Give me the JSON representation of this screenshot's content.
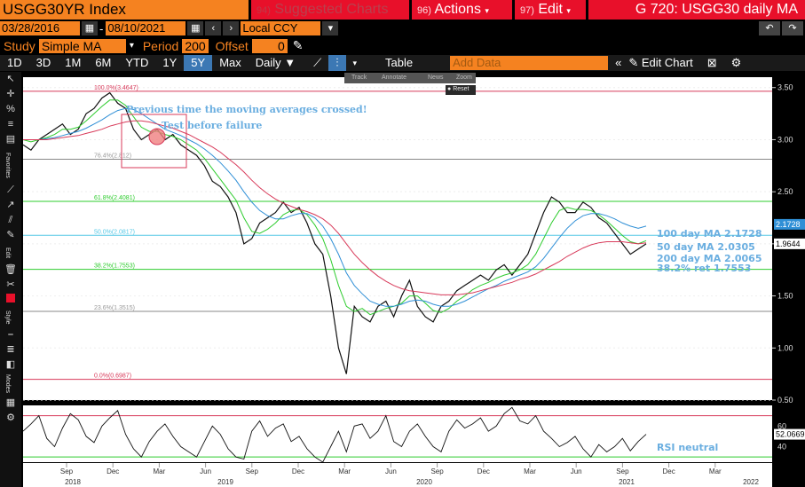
{
  "header": {
    "ticker": "USGG30YR Index",
    "suggested_num": "94)",
    "suggested": "Suggested Charts",
    "actions_num": "96)",
    "actions": "Actions",
    "edit_num": "97)",
    "edit": "Edit",
    "title": "G 720: USGG30 daily MA"
  },
  "dates": {
    "start": "03/28/2016",
    "end": "08/10/2021",
    "currency": "Local CCY"
  },
  "study": {
    "label": "Study",
    "value": "Simple MA",
    "period_label": "Period",
    "period": "200",
    "offset_label": "Offset",
    "offset": "0"
  },
  "periods": [
    "1D",
    "3D",
    "1M",
    "6M",
    "YTD",
    "1Y",
    "5Y",
    "Max"
  ],
  "active_period": "5Y",
  "frequency": "Daily",
  "table_label": "Table",
  "add_data_placeholder": "Add Data",
  "edit_chart": "Edit Chart",
  "toolstrip": {
    "track": "Track",
    "annotate": "Annotate",
    "news": "News",
    "zoom": "Zoom",
    "reset": "Reset"
  },
  "sidebar_labels": {
    "favorites": "Favorites",
    "edit": "Edit",
    "style": "Style",
    "modes": "Modes"
  },
  "colors": {
    "price": "#e8e8e8",
    "ma50": "#2ecc2e",
    "ma100": "#2f8fd6",
    "ma200": "#d83a5a",
    "fib": "#2ecc2e",
    "accent": "#f58220"
  },
  "chart_data": {
    "type": "line",
    "ylim": [
      0.5,
      3.6
    ],
    "yticks": [
      "3.50",
      "3.00",
      "2.50",
      "2.00",
      "1.50",
      "1.00",
      "0.50"
    ],
    "x_month_labels": [
      "Sep",
      "Dec",
      "Mar",
      "Jun",
      "Sep",
      "Dec",
      "Mar",
      "Jun",
      "Sep",
      "Dec",
      "Mar",
      "Jun",
      "Sep",
      "Dec",
      "Mar"
    ],
    "x_year_labels": [
      "2018",
      "2019",
      "2020",
      "2021",
      "2022"
    ],
    "price_label": "1.9644",
    "ma100_label": "2.1728",
    "fib_levels": [
      {
        "label": "100.0%(3.4647)",
        "value": 3.4647,
        "color": "#d83a5a"
      },
      {
        "label": "76.4%(2.812)",
        "value": 2.812,
        "color": "#888888"
      },
      {
        "label": "61.8%(2.4081)",
        "value": 2.4081,
        "color": "#2ecc2e"
      },
      {
        "label": "50.0%(2.0817)",
        "value": 2.0817,
        "color": "#55c8e6"
      },
      {
        "label": "38.2%(1.7553)",
        "value": 1.7553,
        "color": "#2ecc2e"
      },
      {
        "label": "23.6%(1.3515)",
        "value": 1.3515,
        "color": "#888888"
      },
      {
        "label": "0.0%(0.6987)",
        "value": 0.6987,
        "color": "#d83a5a"
      }
    ],
    "series": [
      {
        "name": "",
        "values": [
          2.95,
          2.9,
          3.0,
          3.05,
          3.1,
          3.15,
          3.05,
          3.1,
          3.25,
          3.3,
          3.4,
          3.45,
          3.35,
          3.3,
          3.1,
          3.0,
          3.05,
          3.1,
          3.0,
          3.05,
          2.95,
          2.9,
          2.85,
          2.75,
          2.6,
          2.55,
          2.45,
          2.3,
          2.0,
          2.05,
          2.2,
          2.25,
          2.3,
          2.4,
          2.3,
          2.35,
          2.2,
          2.0,
          1.9,
          1.5,
          1.0,
          0.75,
          1.4,
          1.3,
          1.25,
          1.4,
          1.45,
          1.3,
          1.5,
          1.65,
          1.4,
          1.3,
          1.25,
          1.4,
          1.45,
          1.55,
          1.6,
          1.65,
          1.7,
          1.65,
          1.75,
          1.8,
          1.7,
          1.8,
          1.9,
          2.1,
          2.3,
          2.45,
          2.4,
          2.3,
          2.3,
          2.4,
          2.35,
          2.25,
          2.2,
          2.1,
          2.0,
          1.9,
          1.95,
          2.0
        ]
      },
      {
        "name": "50 day MA",
        "values": [
          3.0,
          2.98,
          3.0,
          3.02,
          3.05,
          3.1,
          3.1,
          3.12,
          3.18,
          3.25,
          3.32,
          3.38,
          3.38,
          3.33,
          3.22,
          3.12,
          3.08,
          3.08,
          3.05,
          3.03,
          3.0,
          2.95,
          2.9,
          2.82,
          2.72,
          2.62,
          2.52,
          2.42,
          2.25,
          2.12,
          2.1,
          2.14,
          2.2,
          2.28,
          2.32,
          2.33,
          2.28,
          2.18,
          2.05,
          1.85,
          1.6,
          1.4,
          1.35,
          1.38,
          1.32,
          1.35,
          1.38,
          1.4,
          1.43,
          1.5,
          1.5,
          1.43,
          1.36,
          1.34,
          1.38,
          1.45,
          1.5,
          1.56,
          1.6,
          1.63,
          1.67,
          1.7,
          1.72,
          1.75,
          1.8,
          1.9,
          2.05,
          2.2,
          2.32,
          2.35,
          2.33,
          2.33,
          2.32,
          2.28,
          2.22,
          2.15,
          2.08,
          2.02,
          2.0,
          2.03
        ]
      },
      {
        "name": "100 day MA",
        "values": [
          3.0,
          3.0,
          3.0,
          3.01,
          3.02,
          3.04,
          3.06,
          3.08,
          3.11,
          3.15,
          3.19,
          3.24,
          3.28,
          3.3,
          3.29,
          3.25,
          3.2,
          3.15,
          3.1,
          3.07,
          3.04,
          3.0,
          2.96,
          2.91,
          2.85,
          2.78,
          2.7,
          2.61,
          2.5,
          2.4,
          2.32,
          2.27,
          2.24,
          2.24,
          2.27,
          2.29,
          2.29,
          2.25,
          2.17,
          2.05,
          1.9,
          1.72,
          1.6,
          1.52,
          1.45,
          1.42,
          1.4,
          1.4,
          1.42,
          1.45,
          1.46,
          1.45,
          1.42,
          1.4,
          1.4,
          1.42,
          1.45,
          1.49,
          1.53,
          1.57,
          1.6,
          1.64,
          1.67,
          1.7,
          1.73,
          1.78,
          1.86,
          1.96,
          2.06,
          2.15,
          2.22,
          2.27,
          2.29,
          2.29,
          2.27,
          2.24,
          2.2,
          2.17,
          2.15,
          2.17
        ]
      },
      {
        "name": "200 day MA",
        "values": [
          3.0,
          3.0,
          3.0,
          3.0,
          3.01,
          3.02,
          3.03,
          3.04,
          3.06,
          3.08,
          3.1,
          3.13,
          3.15,
          3.17,
          3.18,
          3.18,
          3.17,
          3.15,
          3.13,
          3.11,
          3.08,
          3.05,
          3.01,
          2.97,
          2.93,
          2.88,
          2.82,
          2.76,
          2.69,
          2.61,
          2.54,
          2.48,
          2.43,
          2.39,
          2.36,
          2.33,
          2.31,
          2.28,
          2.24,
          2.18,
          2.1,
          2.0,
          1.9,
          1.82,
          1.75,
          1.69,
          1.64,
          1.6,
          1.57,
          1.55,
          1.54,
          1.53,
          1.52,
          1.51,
          1.51,
          1.51,
          1.52,
          1.53,
          1.55,
          1.57,
          1.59,
          1.61,
          1.63,
          1.66,
          1.68,
          1.71,
          1.75,
          1.79,
          1.83,
          1.88,
          1.92,
          1.96,
          1.99,
          2.01,
          2.02,
          2.02,
          2.02,
          2.01,
          2.0,
          2.01
        ]
      }
    ],
    "annotations": {
      "crossed": "Previous time the moving averages crossed!",
      "test": "Test before failure",
      "ma100": "100 day MA 2.1728",
      "ma50": "50 day MA 2.0305",
      "ma200": "200 day MA 2.0065",
      "fib382": "38.2% ret 1.7553",
      "rsi_note": "RSI neutral"
    },
    "rsi": {
      "ylim": [
        25,
        80
      ],
      "yticks": [
        "60",
        "40"
      ],
      "overbought": 70,
      "oversold": 30,
      "current_label": "52.0669",
      "values": [
        55,
        62,
        70,
        48,
        40,
        58,
        72,
        66,
        50,
        44,
        60,
        68,
        75,
        52,
        38,
        30,
        45,
        55,
        62,
        50,
        40,
        35,
        30,
        45,
        60,
        52,
        38,
        30,
        28,
        55,
        65,
        50,
        58,
        62,
        45,
        50,
        38,
        30,
        25,
        40,
        55,
        35,
        60,
        62,
        48,
        55,
        70,
        45,
        40,
        55,
        62,
        50,
        40,
        35,
        55,
        66,
        58,
        62,
        68,
        55,
        60,
        72,
        78,
        65,
        62,
        70,
        55,
        48,
        40,
        44,
        50,
        38,
        30,
        42,
        35,
        40,
        48,
        36,
        45,
        52
      ]
    }
  }
}
